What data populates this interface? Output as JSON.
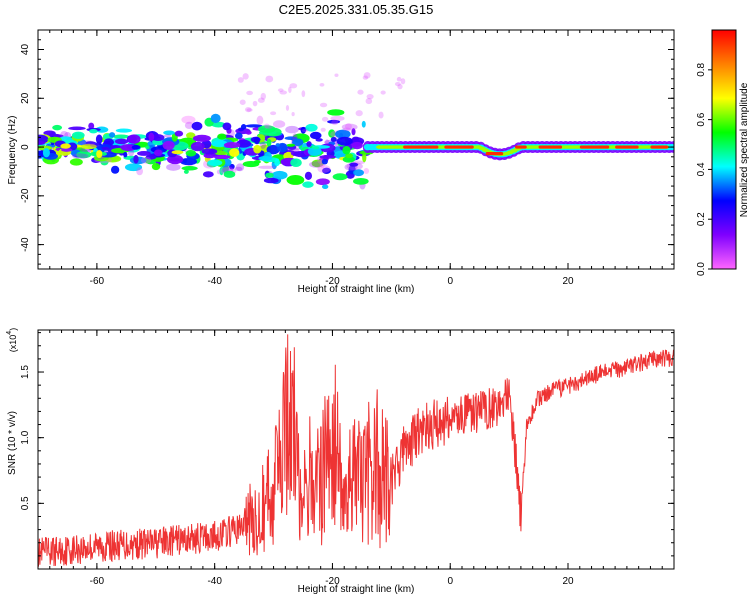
{
  "title": "C2E5.2025.331.05.35.G15",
  "chart_data": [
    {
      "type": "heatmap",
      "xlabel": "Height of straight line (km)",
      "ylabel": "Frequency (Hz)",
      "xlim": [
        -70,
        38
      ],
      "ylim": [
        -50,
        48
      ],
      "xticks": [
        -60,
        -40,
        -20,
        0,
        20
      ],
      "yticks": [
        -40,
        -20,
        0,
        20,
        40
      ],
      "xtick_labels": [
        "-60",
        "-40",
        "-20",
        "0",
        "20"
      ],
      "ytick_labels": [
        "-40",
        "-20",
        "0",
        "20",
        "40"
      ],
      "colorbar": {
        "label": "Normalized spectral amplitude",
        "range": [
          0,
          0.96
        ],
        "ticks": [
          0.0,
          0.2,
          0.4,
          0.6,
          0.8
        ],
        "tick_labels": [
          "0.0",
          "0.2",
          "0.4",
          "0.6",
          "0.8"
        ],
        "colormap": [
          "#ff66ff",
          "#7f00ff",
          "#0000ff",
          "#00ffff",
          "#00ff00",
          "#ffff00",
          "#ff8000",
          "#ff0000"
        ]
      },
      "features": [
        {
          "name": "scattered-scintillation",
          "x_range": [
            -70,
            -14
          ],
          "freq_center": 0,
          "freq_spread": 15,
          "amplitude": 0.35
        },
        {
          "name": "steady-carrier",
          "x_range": [
            -14,
            38
          ],
          "freq_center": 0,
          "freq_spread": 2,
          "amplitude": 0.9
        },
        {
          "name": "carrier-dip",
          "x_range": [
            5,
            12
          ],
          "freq_center": -3,
          "amplitude": 0.7
        }
      ]
    },
    {
      "type": "line",
      "xlabel": "Height of straight line (km)",
      "ylabel": "SNR (10 * v/v)",
      "multiplier_label": "(x10",
      "multiplier_exponent": "4",
      "xlim": [
        -70,
        38
      ],
      "ylim": [
        0,
        1.82
      ],
      "xticks": [
        -60,
        -40,
        -20,
        0,
        20
      ],
      "yticks": [
        0.5,
        1.0,
        1.5
      ],
      "xtick_labels": [
        "-60",
        "-40",
        "-20",
        "0",
        "20"
      ],
      "ytick_labels": [
        "0.5",
        "1.0",
        "1.5"
      ],
      "color": "#ee3333",
      "x": [
        -70,
        -60,
        -50,
        -40,
        -35,
        -30,
        -27,
        -25,
        -22,
        -20,
        -18,
        -15,
        -12,
        -10,
        -8,
        -5,
        0,
        5,
        8,
        10,
        11,
        12,
        13,
        15,
        20,
        25,
        30,
        35,
        38
      ],
      "y": [
        0.12,
        0.17,
        0.2,
        0.25,
        0.32,
        0.6,
        1.15,
        0.6,
        0.7,
        1.0,
        0.6,
        0.7,
        0.75,
        0.65,
        0.9,
        1.05,
        1.15,
        1.2,
        1.25,
        1.3,
        0.9,
        0.4,
        1.1,
        1.3,
        1.4,
        1.48,
        1.54,
        1.6,
        1.6
      ]
    }
  ]
}
